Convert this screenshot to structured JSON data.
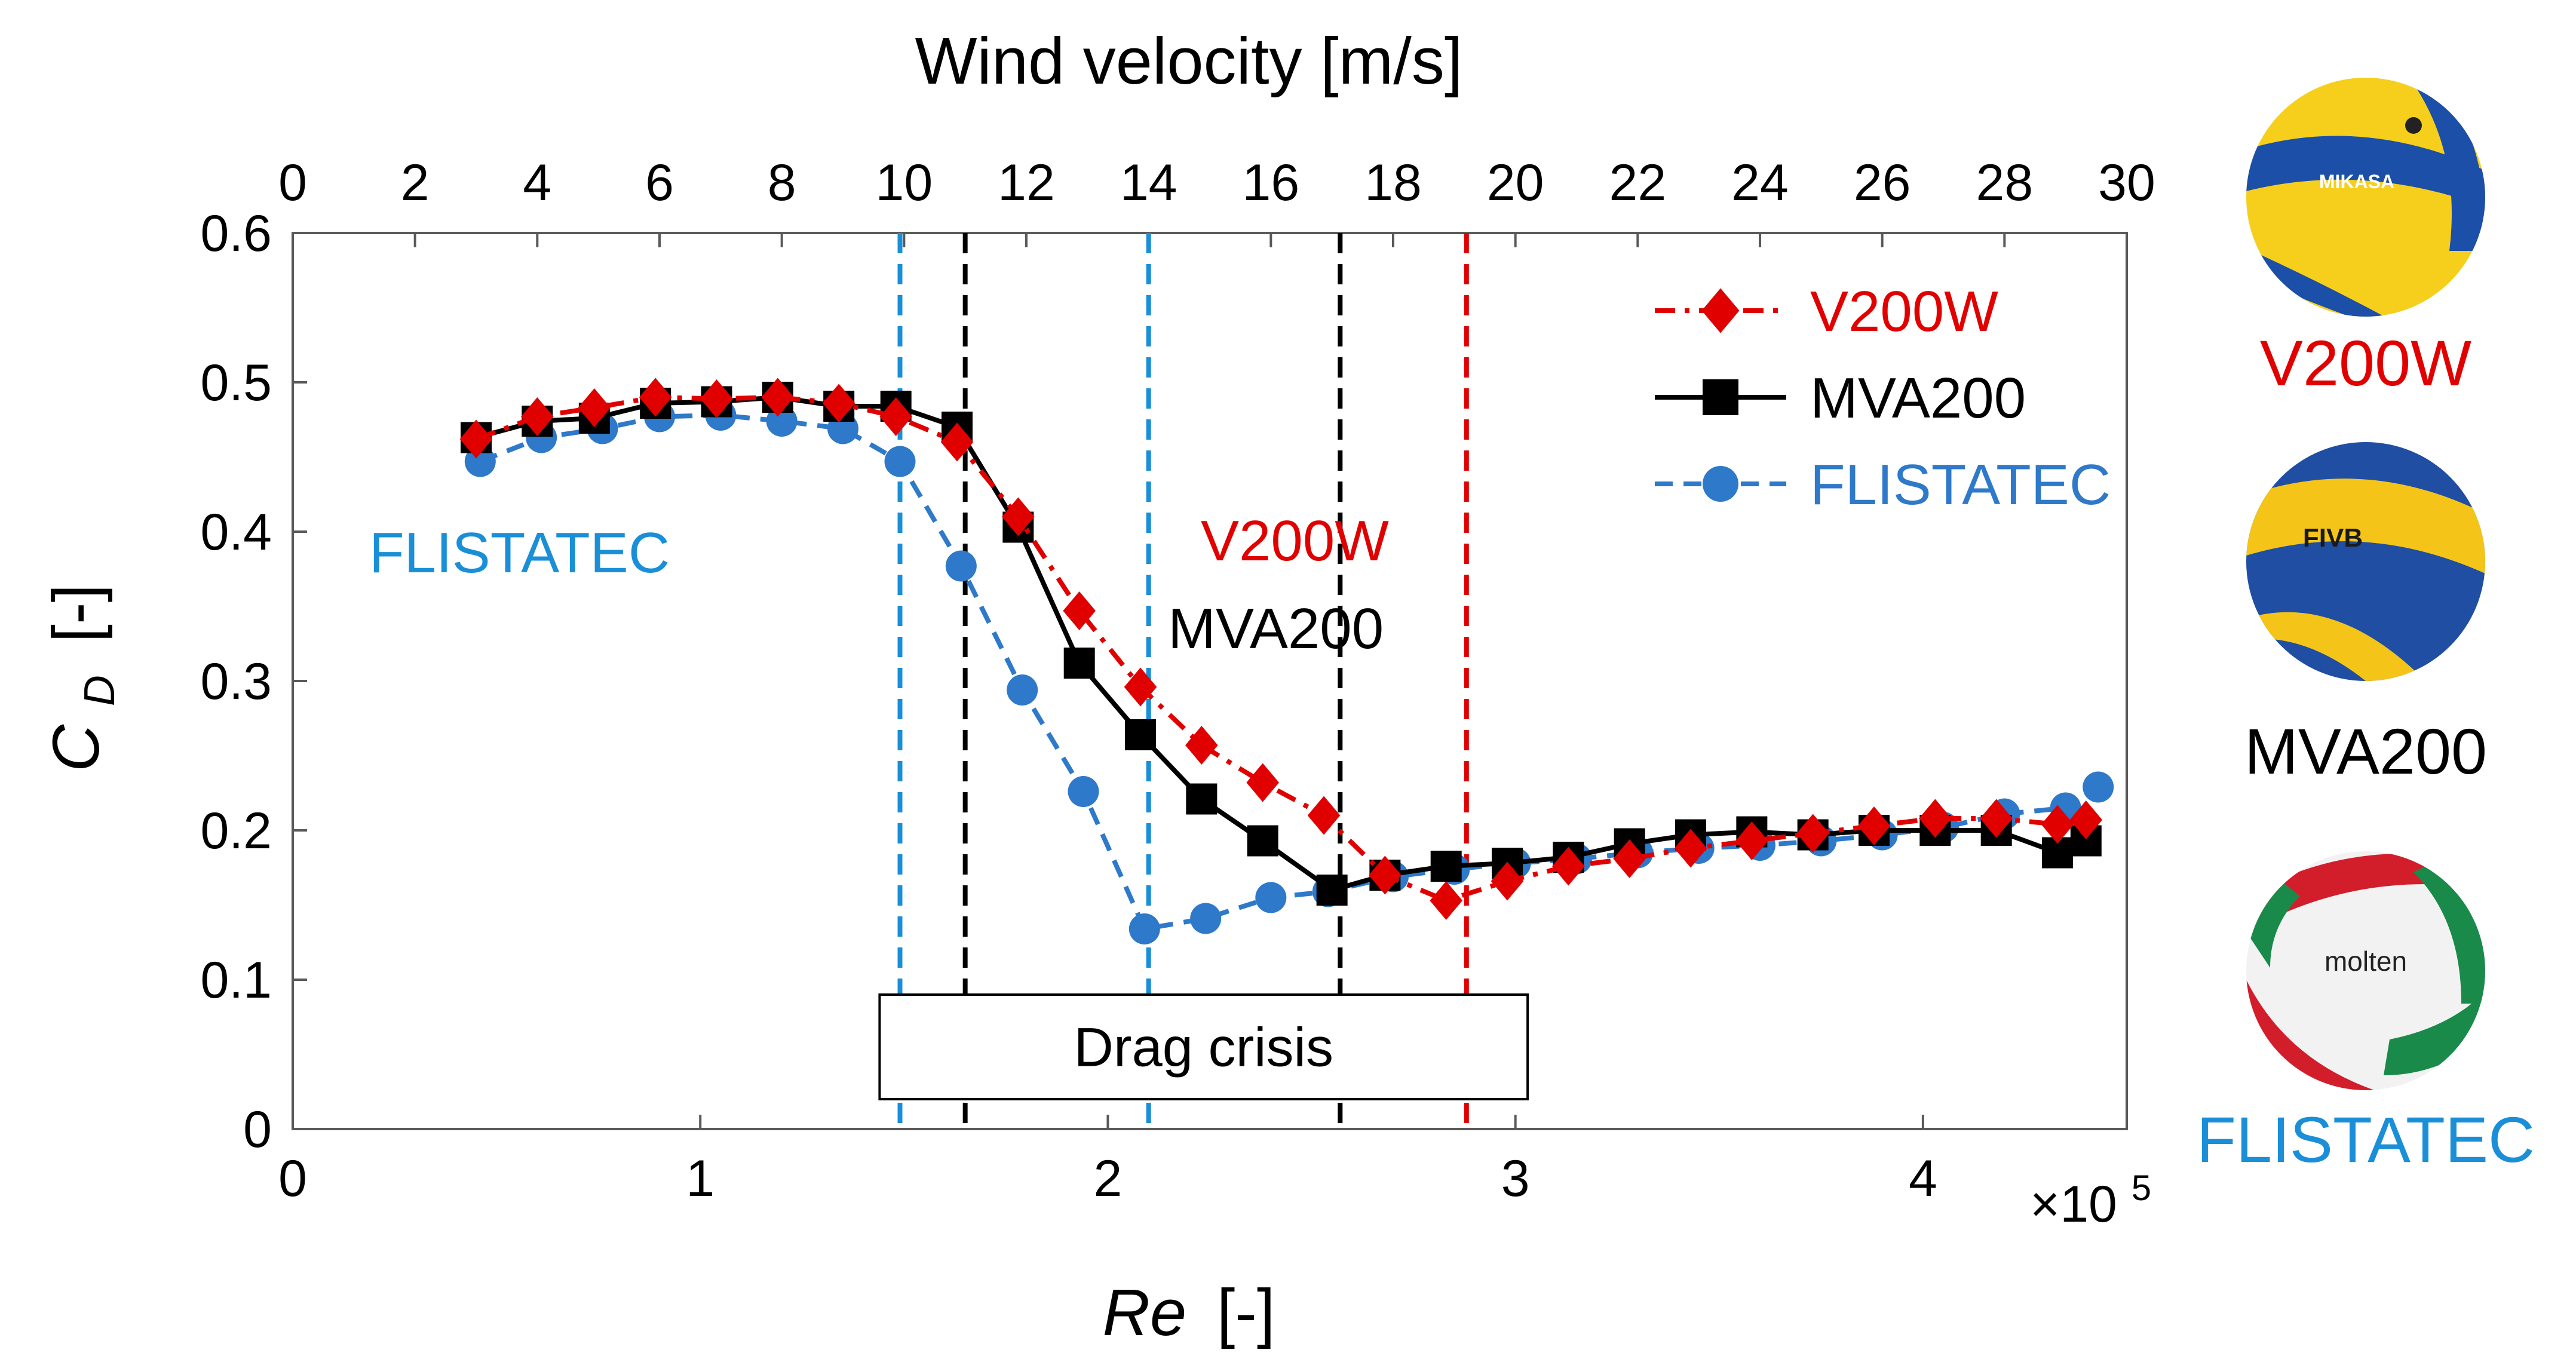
{
  "chart_data": {
    "type": "line",
    "title": "",
    "xlabel_main": "Re",
    "xlabel_unit": "[-]",
    "x_multiplier": "×10",
    "x_multiplier_exp": "5",
    "xlim": [
      0,
      4.5
    ],
    "xticks": [
      0,
      1,
      2,
      3,
      4
    ],
    "x2label": "Wind velocity [m/s]",
    "x2lim": [
      0,
      30
    ],
    "x2ticks": [
      0,
      2,
      4,
      6,
      8,
      10,
      12,
      14,
      16,
      18,
      20,
      22,
      24,
      26,
      28,
      30
    ],
    "ylabel_main": "C",
    "ylabel_sub": "D",
    "ylabel_unit": "[-]",
    "ylim": [
      0,
      0.6
    ],
    "yticks": [
      "0",
      "0.1",
      "0.2",
      "0.3",
      "0.4",
      "0.5",
      "0.6"
    ],
    "series": [
      {
        "name": "V200W",
        "color": "#e00000",
        "marker": "diamond",
        "line": "dashdot",
        "x": [
          0.45,
          0.6,
          0.74,
          0.89,
          1.04,
          1.19,
          1.34,
          1.48,
          1.63,
          1.78,
          1.93,
          2.08,
          2.23,
          2.38,
          2.53,
          2.68,
          2.83,
          2.98,
          3.13,
          3.28,
          3.43,
          3.58,
          3.73,
          3.88,
          4.03,
          4.18,
          4.33,
          4.4
        ],
        "y": [
          0.462,
          0.477,
          0.483,
          0.49,
          0.489,
          0.49,
          0.486,
          0.477,
          0.46,
          0.41,
          0.347,
          0.296,
          0.257,
          0.232,
          0.21,
          0.17,
          0.153,
          0.166,
          0.176,
          0.181,
          0.188,
          0.193,
          0.198,
          0.203,
          0.208,
          0.208,
          0.204,
          0.207
        ]
      },
      {
        "name": "MVA200",
        "color": "#000000",
        "marker": "square",
        "line": "solid",
        "x": [
          0.45,
          0.6,
          0.74,
          0.89,
          1.04,
          1.19,
          1.34,
          1.48,
          1.63,
          1.78,
          1.93,
          2.08,
          2.23,
          2.38,
          2.55,
          2.68,
          2.83,
          2.98,
          3.13,
          3.28,
          3.43,
          3.58,
          3.73,
          3.88,
          4.03,
          4.18,
          4.33,
          4.4
        ],
        "y": [
          0.463,
          0.474,
          0.476,
          0.486,
          0.487,
          0.49,
          0.484,
          0.484,
          0.47,
          0.403,
          0.312,
          0.264,
          0.221,
          0.193,
          0.16,
          0.17,
          0.176,
          0.178,
          0.182,
          0.191,
          0.197,
          0.199,
          0.197,
          0.2,
          0.2,
          0.2,
          0.185,
          0.193
        ]
      },
      {
        "name": "FLISTATEC",
        "color": "#2e79c9",
        "marker": "circle",
        "line": "dashed",
        "x": [
          0.46,
          0.61,
          0.76,
          0.9,
          1.05,
          1.2,
          1.35,
          1.49,
          1.64,
          1.79,
          1.94,
          2.09,
          2.24,
          2.4,
          2.54,
          2.7,
          2.85,
          3.0,
          3.15,
          3.3,
          3.45,
          3.6,
          3.75,
          3.9,
          4.05,
          4.2,
          4.35,
          4.43
        ],
        "y": [
          0.447,
          0.463,
          0.469,
          0.477,
          0.478,
          0.474,
          0.469,
          0.447,
          0.377,
          0.294,
          0.226,
          0.134,
          0.141,
          0.155,
          0.159,
          0.169,
          0.174,
          0.178,
          0.181,
          0.185,
          0.188,
          0.19,
          0.193,
          0.197,
          0.202,
          0.211,
          0.215,
          0.229
        ]
      }
    ],
    "vlines": [
      {
        "x": 1.49,
        "color": "#1a8fd8"
      },
      {
        "x": 1.65,
        "color": "#000000"
      },
      {
        "x": 2.1,
        "color": "#1a8fd8"
      },
      {
        "x": 2.57,
        "color": "#000000"
      },
      {
        "x": 2.88,
        "color": "#e00000"
      }
    ],
    "annotations": {
      "flistatec": {
        "text": "FLISTATEC",
        "color": "#1a8fd8"
      },
      "v200w": {
        "text": "V200W",
        "color": "#e00000"
      },
      "mva200": {
        "text": "MVA200",
        "color": "#000000"
      },
      "drag_crisis": {
        "text": "Drag crisis",
        "x_start": 1.44,
        "x_end": 3.03,
        "y_top": 0.09,
        "y_bottom": 0.02
      }
    },
    "legend_position": "top-right"
  },
  "balls": [
    {
      "label": "V200W",
      "color": "#e00000",
      "image": "yellow-blue volleyball with MIKASA logo",
      "logo": "MIKASA"
    },
    {
      "label": "MVA200",
      "color": "#000000",
      "image": "yellow-blue volleyball with FIVB logo",
      "logo": "FIVB"
    },
    {
      "label": "FLISTATEC",
      "color": "#1a8fd8",
      "image": "red-green-white volleyball with molten logo",
      "logo": "molten"
    }
  ]
}
